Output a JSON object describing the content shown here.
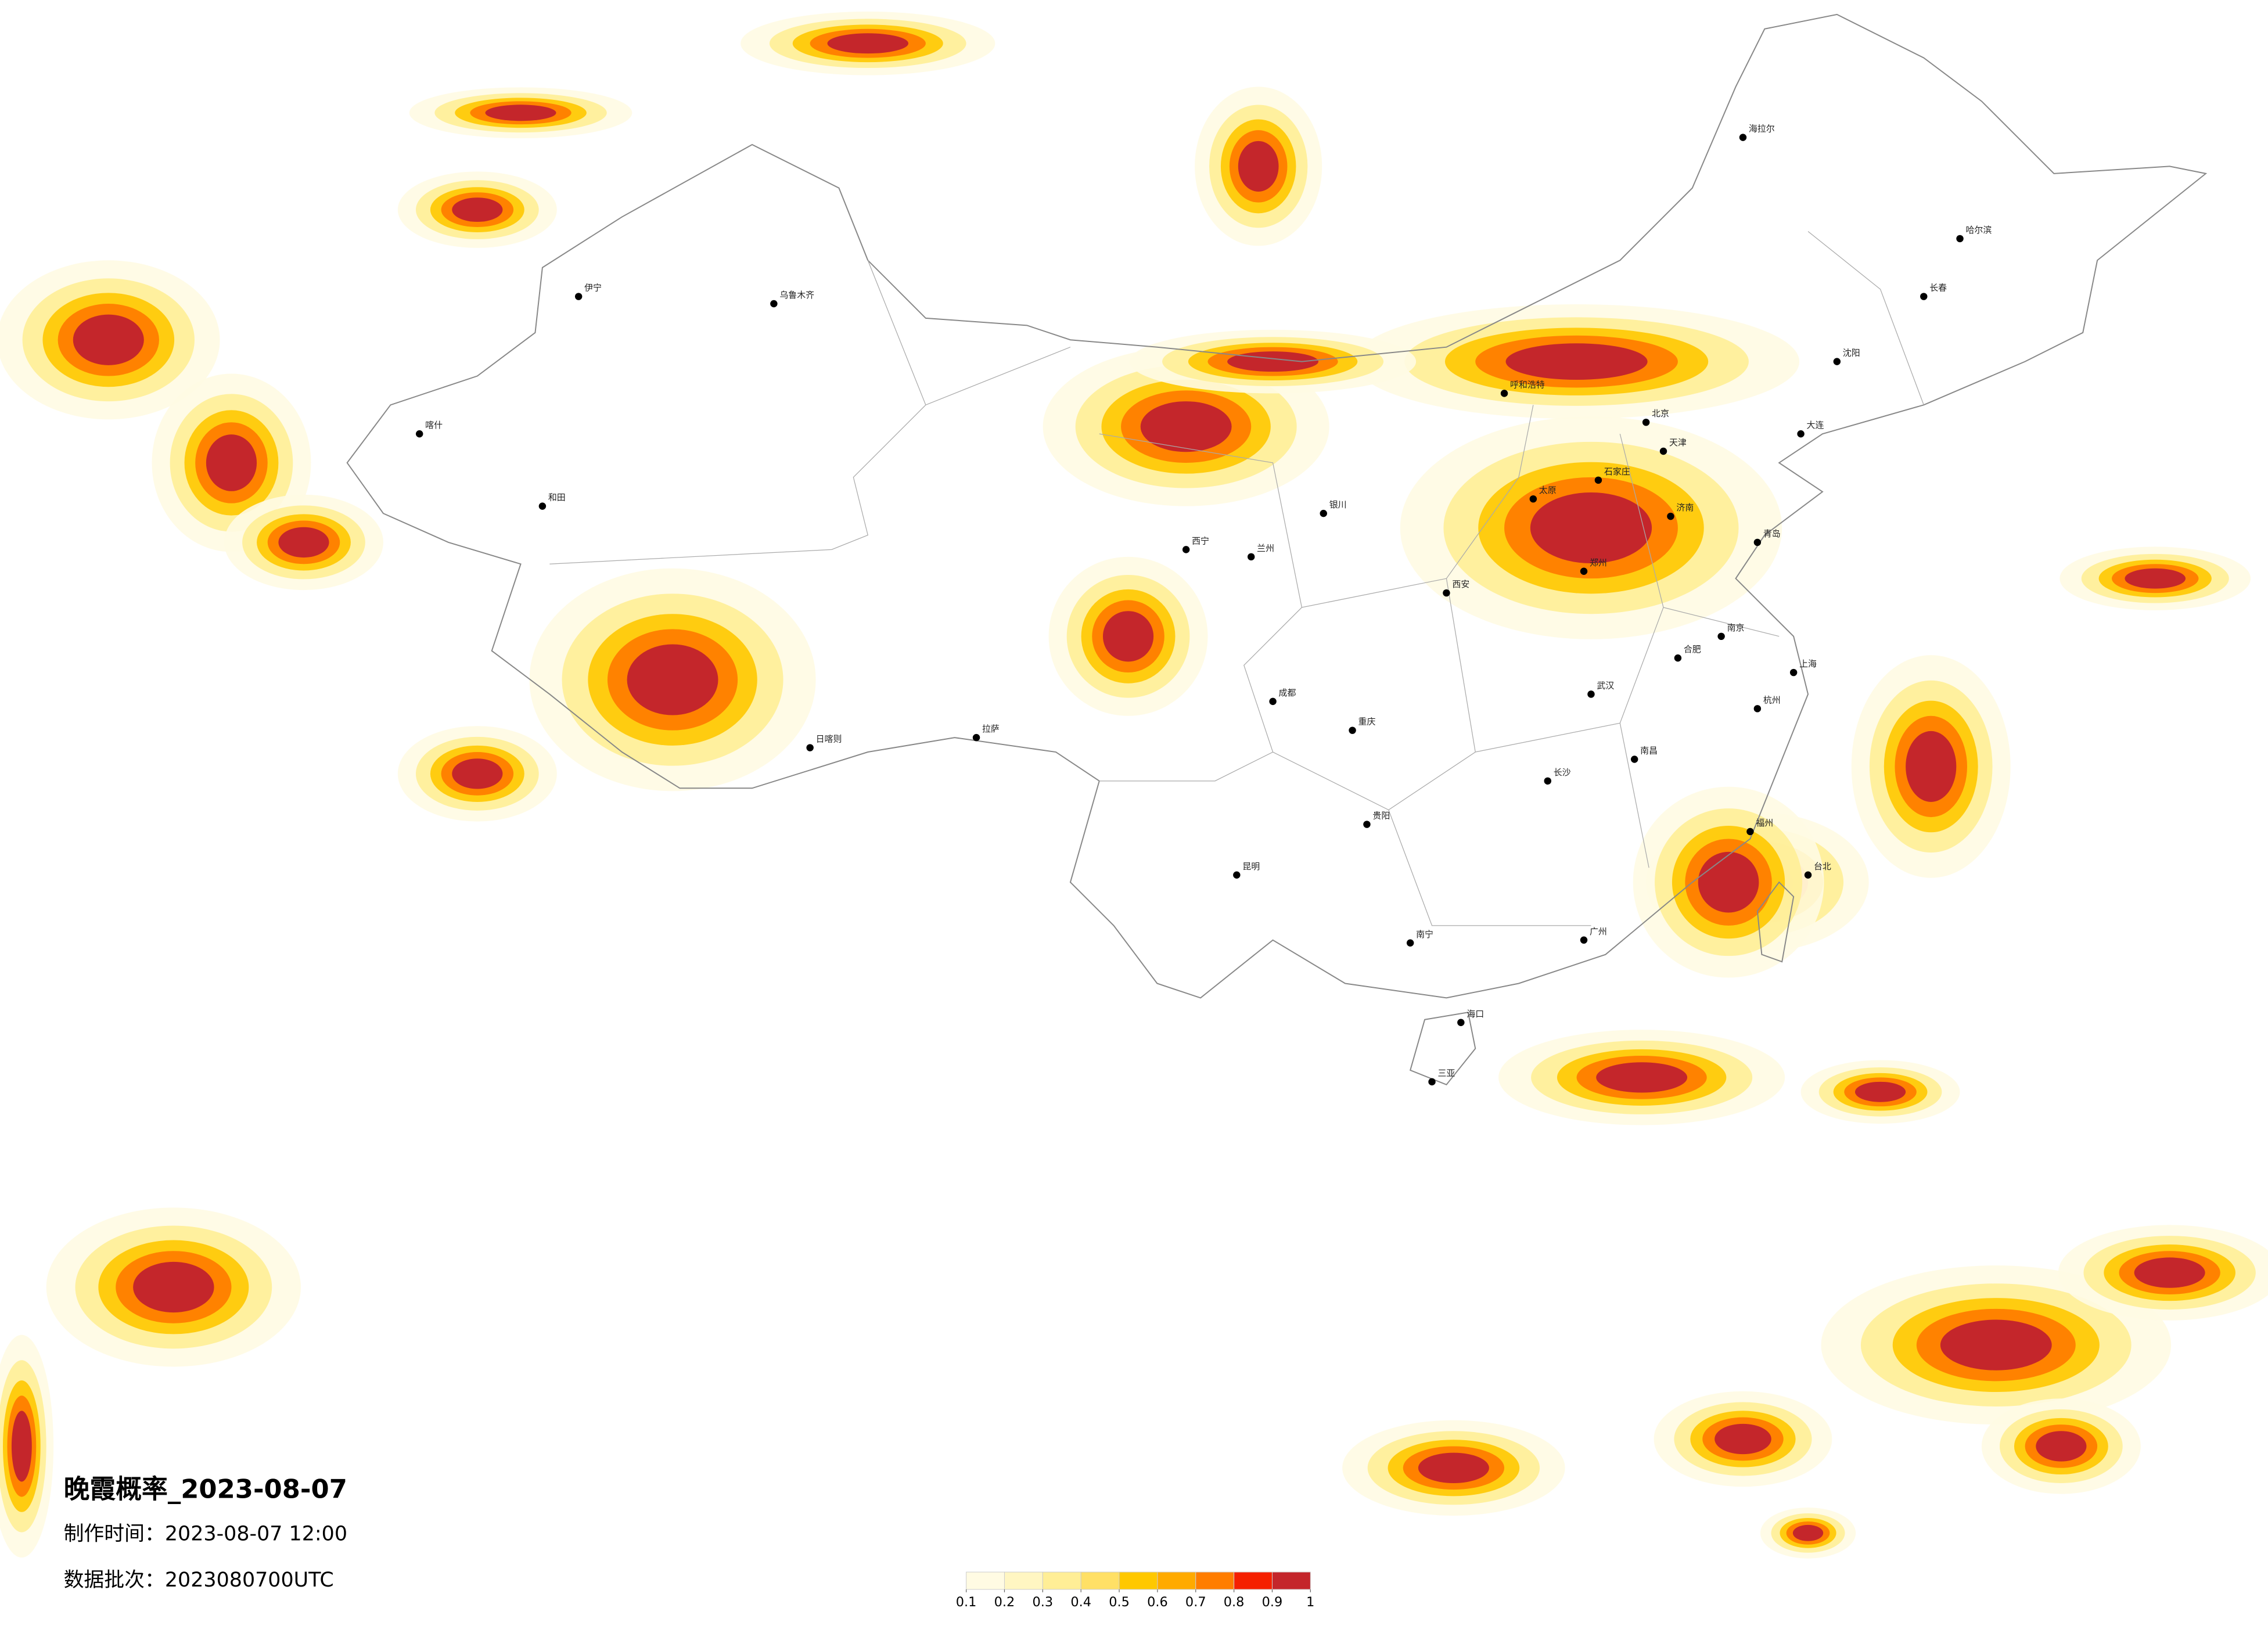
{
  "map": {
    "title": "晚霞概率_2023-08-07",
    "made_time": "制作时间：2023-08-07 12:00",
    "data_batch": "数据批次：2023080700UTC",
    "colorbar": {
      "ticks": [
        0.1,
        0.2,
        0.3,
        0.4,
        0.5,
        0.6,
        0.7,
        0.8,
        0.9,
        1
      ],
      "colors": [
        "#fffbe3",
        "#fff6c2",
        "#ffee96",
        "#ffe066",
        "#ffc800",
        "#ffaa00",
        "#ff7d00",
        "#f52000",
        "#c4262b"
      ]
    },
    "cities": [
      "北京",
      "天津",
      "石家庄",
      "太原",
      "济南",
      "郑州",
      "西安",
      "武汉",
      "长沙",
      "南昌",
      "合肥",
      "南京",
      "上海",
      "杭州",
      "福州",
      "广州",
      "南宁",
      "海口",
      "昆明",
      "贵阳",
      "成都",
      "重庆",
      "兰州",
      "西宁",
      "银川",
      "呼和浩特",
      "沈阳",
      "长春",
      "哈尔滨",
      "乌鲁木齐",
      "拉萨",
      "台北",
      "大连",
      "青岛",
      "和田",
      "喀什",
      "伊宁",
      "海拉尔",
      "三亚",
      "日喀则"
    ]
  }
}
